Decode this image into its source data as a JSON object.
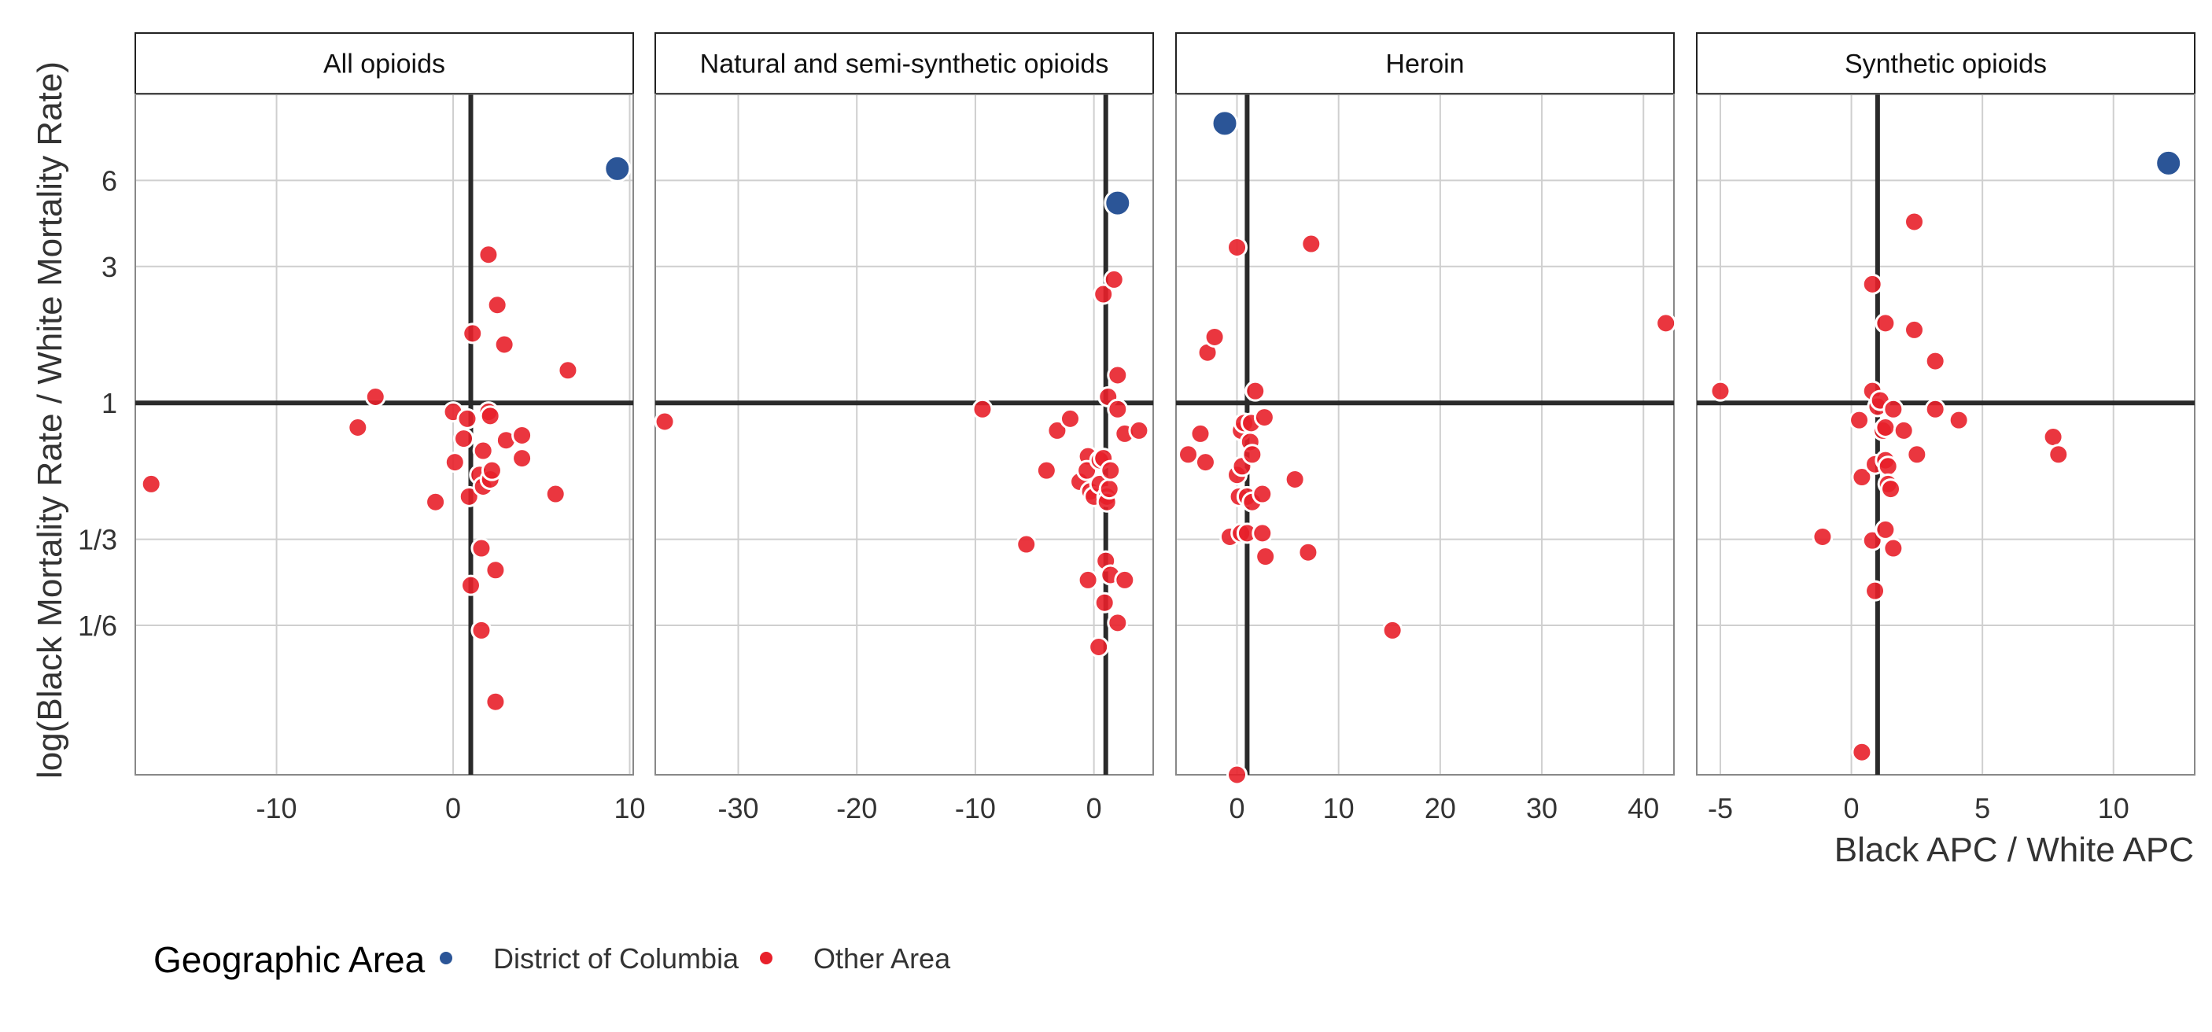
{
  "chart_data": {
    "type": "scatter",
    "xlabel": "Black APC / White APC",
    "ylabel": "log(Black Mortality Rate / White Mortality Rate)",
    "y_scale": "log",
    "y_ticks": [
      {
        "value": 0.1667,
        "label": "1/6"
      },
      {
        "value": 0.3333,
        "label": "1/3"
      },
      {
        "value": 1,
        "label": "1"
      },
      {
        "value": 3,
        "label": "3"
      },
      {
        "value": 6,
        "label": "6"
      }
    ],
    "ylim": [
      0.05,
      12
    ],
    "grid": true,
    "reference_lines": {
      "x": 1,
      "y": 1
    },
    "colors": {
      "District of Columbia": "#2B5597",
      "Other Area": "#E8202A"
    },
    "legend": {
      "title": "Geographic Area",
      "position": "bottom-left",
      "entries": [
        "District of Columbia",
        "Other Area"
      ]
    },
    "panels": [
      {
        "title": "All opioids",
        "xlim": [
          -18,
          10.2
        ],
        "x_ticks": [
          -10,
          0,
          10
        ],
        "series": [
          {
            "name": "District of Columbia",
            "points": [
              [
                9.3,
                6.6
              ]
            ]
          },
          {
            "name": "Other Area",
            "points": [
              [
                -17.1,
                0.52
              ],
              [
                -5.4,
                0.82
              ],
              [
                -4.4,
                1.05
              ],
              [
                -1.0,
                0.45
              ],
              [
                0.0,
                0.93
              ],
              [
                0.1,
                0.62
              ],
              [
                0.6,
                0.75
              ],
              [
                0.8,
                0.88
              ],
              [
                0.9,
                0.47
              ],
              [
                1.0,
                0.23
              ],
              [
                1.1,
                1.75
              ],
              [
                1.5,
                0.56
              ],
              [
                1.6,
                0.31
              ],
              [
                1.6,
                0.16
              ],
              [
                1.7,
                0.68
              ],
              [
                1.7,
                0.51
              ],
              [
                2.0,
                0.93
              ],
              [
                2.0,
                3.3
              ],
              [
                2.1,
                0.9
              ],
              [
                2.1,
                0.54
              ],
              [
                2.2,
                0.58
              ],
              [
                2.4,
                0.26
              ],
              [
                2.4,
                0.09
              ],
              [
                2.5,
                2.2
              ],
              [
                2.9,
                1.6
              ],
              [
                3.0,
                0.74
              ],
              [
                3.9,
                0.77
              ],
              [
                3.9,
                0.64
              ],
              [
                5.8,
                0.48
              ],
              [
                6.5,
                1.3
              ]
            ]
          }
        ]
      },
      {
        "title": "Natural and semi-synthetic opioids",
        "xlim": [
          -37,
          5
        ],
        "x_ticks": [
          -30,
          -20,
          -10,
          0
        ],
        "series": [
          {
            "name": "District of Columbia",
            "points": [
              [
                2.0,
                5.0
              ]
            ]
          },
          {
            "name": "Other Area",
            "points": [
              [
                -36.2,
                0.86
              ],
              [
                -9.4,
                0.95
              ],
              [
                -5.7,
                0.32
              ],
              [
                -4.0,
                0.58
              ],
              [
                -3.1,
                0.8
              ],
              [
                -2.0,
                0.88
              ],
              [
                -1.2,
                0.53
              ],
              [
                -0.5,
                0.65
              ],
              [
                -0.6,
                0.58
              ],
              [
                -0.5,
                0.24
              ],
              [
                -0.3,
                0.49
              ],
              [
                0.0,
                0.47
              ],
              [
                0.4,
                0.14
              ],
              [
                0.5,
                0.52
              ],
              [
                0.5,
                0.63
              ],
              [
                0.8,
                0.64
              ],
              [
                0.8,
                2.4
              ],
              [
                0.9,
                0.2
              ],
              [
                1.0,
                0.28
              ],
              [
                1.1,
                0.47
              ],
              [
                1.1,
                0.45
              ],
              [
                1.2,
                1.05
              ],
              [
                1.3,
                0.5
              ],
              [
                1.4,
                0.25
              ],
              [
                1.4,
                0.58
              ],
              [
                1.7,
                2.7
              ],
              [
                2.0,
                0.17
              ],
              [
                2.0,
                0.95
              ],
              [
                2.0,
                1.25
              ],
              [
                2.6,
                0.24
              ],
              [
                2.6,
                0.78
              ],
              [
                3.8,
                0.8
              ]
            ]
          }
        ]
      },
      {
        "title": "Heroin",
        "xlim": [
          -6,
          43
        ],
        "x_ticks": [
          0,
          10,
          20,
          30,
          40
        ],
        "series": [
          {
            "name": "District of Columbia",
            "points": [
              [
                -1.2,
                9.5
              ]
            ]
          },
          {
            "name": "Other Area",
            "points": [
              [
                -4.8,
                0.66
              ],
              [
                -3.6,
                0.78
              ],
              [
                -3.1,
                0.62
              ],
              [
                -2.9,
                1.5
              ],
              [
                -2.2,
                1.7
              ],
              [
                -0.7,
                0.34
              ],
              [
                0.0,
                3.5
              ],
              [
                0.0,
                0.56
              ],
              [
                0.0,
                0.05
              ],
              [
                0.2,
                0.47
              ],
              [
                0.4,
                0.8
              ],
              [
                0.4,
                0.35
              ],
              [
                0.5,
                0.6
              ],
              [
                0.7,
                0.85
              ],
              [
                1.0,
                0.35
              ],
              [
                1.0,
                0.47
              ],
              [
                1.3,
                0.73
              ],
              [
                1.4,
                0.85
              ],
              [
                1.5,
                0.66
              ],
              [
                1.5,
                0.45
              ],
              [
                1.8,
                1.1
              ],
              [
                2.5,
                0.48
              ],
              [
                2.5,
                0.35
              ],
              [
                2.7,
                0.89
              ],
              [
                2.8,
                0.29
              ],
              [
                5.7,
                0.54
              ],
              [
                7.0,
                0.3
              ],
              [
                7.3,
                3.6
              ],
              [
                15.3,
                0.16
              ],
              [
                42.2,
                1.9
              ]
            ]
          }
        ]
      },
      {
        "title": "Synthetic opioids",
        "xlim": [
          -5.9,
          13.1
        ],
        "x_ticks": [
          -5,
          0,
          5,
          10
        ],
        "series": [
          {
            "name": "District of Columbia",
            "points": [
              [
                12.1,
                6.9
              ]
            ]
          },
          {
            "name": "Other Area",
            "points": [
              [
                -5.0,
                1.1
              ],
              [
                -1.1,
                0.34
              ],
              [
                0.3,
                0.87
              ],
              [
                0.4,
                0.55
              ],
              [
                0.4,
                0.06
              ],
              [
                0.8,
                1.1
              ],
              [
                0.8,
                2.6
              ],
              [
                0.8,
                0.33
              ],
              [
                0.9,
                0.61
              ],
              [
                0.9,
                0.22
              ],
              [
                1.0,
                0.97
              ],
              [
                1.1,
                1.02
              ],
              [
                1.2,
                0.8
              ],
              [
                1.3,
                1.9
              ],
              [
                1.3,
                0.82
              ],
              [
                1.3,
                0.36
              ],
              [
                1.3,
                0.63
              ],
              [
                1.4,
                0.6
              ],
              [
                1.4,
                0.52
              ],
              [
                1.5,
                0.5
              ],
              [
                1.6,
                0.95
              ],
              [
                1.6,
                0.31
              ],
              [
                2.0,
                0.8
              ],
              [
                2.4,
                1.8
              ],
              [
                2.4,
                4.3
              ],
              [
                2.5,
                0.66
              ],
              [
                3.2,
                1.4
              ],
              [
                3.2,
                0.95
              ],
              [
                4.1,
                0.87
              ],
              [
                7.7,
                0.76
              ],
              [
                7.9,
                0.66
              ]
            ]
          }
        ]
      }
    ]
  }
}
